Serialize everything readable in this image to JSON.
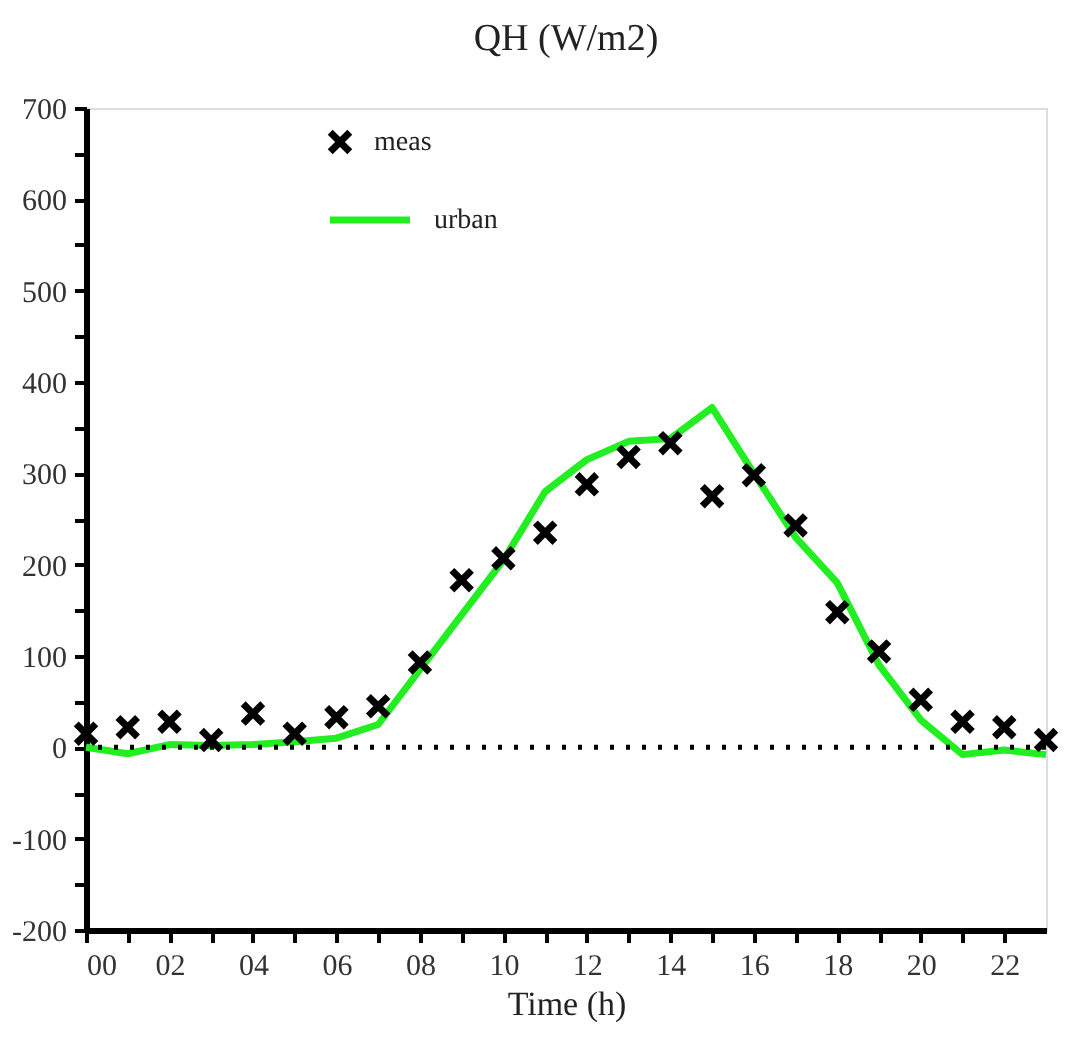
{
  "chart_data": {
    "type": "line",
    "title": "QH (W/m2)",
    "xlabel": "Time (h)",
    "x": [
      0,
      1,
      2,
      3,
      4,
      5,
      6,
      7,
      8,
      9,
      10,
      11,
      12,
      13,
      14,
      15,
      16,
      17,
      18,
      19,
      20,
      21,
      22,
      23
    ],
    "series": [
      {
        "name": "meas",
        "type": "scatter",
        "marker": "cross",
        "color": "#000000",
        "values": [
          15,
          22,
          28,
          8,
          37,
          15,
          33,
          45,
          93,
          183,
          207,
          235,
          288,
          318,
          333,
          275,
          298,
          243,
          148,
          105,
          52,
          28,
          22,
          8
        ]
      },
      {
        "name": "urban",
        "type": "line",
        "marker": "none",
        "line_style": "solid",
        "color": "#22ee22",
        "values": [
          0,
          -7,
          3,
          2,
          3,
          6,
          10,
          25,
          85,
          145,
          205,
          280,
          315,
          335,
          338,
          372,
          300,
          230,
          180,
          90,
          30,
          -8,
          -3,
          -8
        ]
      }
    ],
    "xlim": [
      0,
      23
    ],
    "xticks": [
      {
        "value": 0,
        "label": "00"
      },
      {
        "value": 1,
        "label": null
      },
      {
        "value": 2,
        "label": "02"
      },
      {
        "value": 3,
        "label": null
      },
      {
        "value": 4,
        "label": "04"
      },
      {
        "value": 5,
        "label": null
      },
      {
        "value": 6,
        "label": "06"
      },
      {
        "value": 7,
        "label": null
      },
      {
        "value": 8,
        "label": "08"
      },
      {
        "value": 9,
        "label": null
      },
      {
        "value": 10,
        "label": "10"
      },
      {
        "value": 11,
        "label": null
      },
      {
        "value": 12,
        "label": "12"
      },
      {
        "value": 13,
        "label": null
      },
      {
        "value": 14,
        "label": "14"
      },
      {
        "value": 15,
        "label": null
      },
      {
        "value": 16,
        "label": "16"
      },
      {
        "value": 17,
        "label": null
      },
      {
        "value": 18,
        "label": "18"
      },
      {
        "value": 19,
        "label": null
      },
      {
        "value": 20,
        "label": "20"
      },
      {
        "value": 21,
        "label": null
      },
      {
        "value": 22,
        "label": "22"
      }
    ],
    "ylim": [
      -200,
      700
    ],
    "yticks": [
      -200,
      {
        "value": -150,
        "label": null
      },
      -100,
      {
        "value": -50,
        "label": null
      },
      0,
      {
        "value": 50,
        "label": null
      },
      100,
      {
        "value": 150,
        "label": null
      },
      200,
      {
        "value": 250,
        "label": null
      },
      300,
      {
        "value": 350,
        "label": null
      },
      400,
      {
        "value": 450,
        "label": null
      },
      500,
      {
        "value": 550,
        "label": null
      },
      600,
      {
        "value": 650,
        "label": null
      },
      700
    ],
    "ref_lines": [
      {
        "axis": "y",
        "value": 0,
        "line_style": "dotted",
        "color": "#000000"
      }
    ],
    "grid": false,
    "legend": "top"
  }
}
